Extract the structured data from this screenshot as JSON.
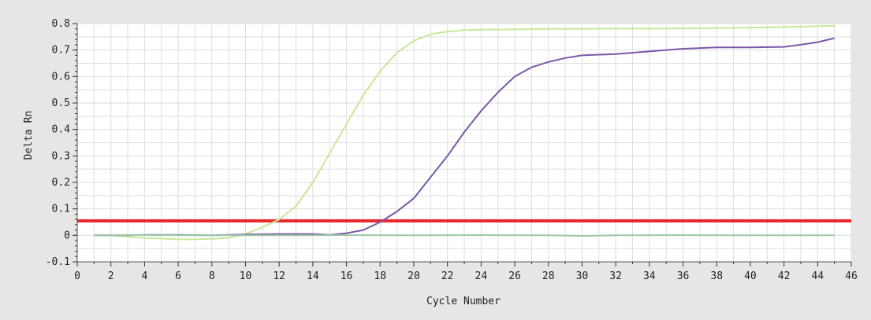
{
  "chart_data": {
    "type": "line",
    "xlabel": "Cycle Number",
    "ylabel": "Delta Rn",
    "xlim": [
      0,
      46
    ],
    "ylim": [
      -0.1,
      0.8
    ],
    "x_ticks": [
      0,
      2,
      4,
      6,
      8,
      10,
      12,
      14,
      16,
      18,
      20,
      22,
      24,
      26,
      28,
      30,
      32,
      34,
      36,
      38,
      40,
      42,
      44,
      46
    ],
    "y_ticks": [
      -0.1,
      0,
      0.1,
      0.2,
      0.3,
      0.4,
      0.5,
      0.6,
      0.7,
      0.8
    ],
    "x_tick_labels": [
      "0",
      "2",
      "4",
      "6",
      "8",
      "10",
      "12",
      "14",
      "16",
      "18",
      "20",
      "22",
      "24",
      "26",
      "28",
      "30",
      "32",
      "34",
      "36",
      "38",
      "40",
      "42",
      "44",
      "46"
    ],
    "y_tick_labels": [
      "-0.1",
      "0",
      "0.1",
      "0.2",
      "0.3",
      "0.4",
      "0.5",
      "0.6",
      "0.7",
      "0.8"
    ],
    "grid": true,
    "threshold": {
      "y": 0.055,
      "color": "#e8262a"
    },
    "series": [
      {
        "color": "#c8e89a",
        "x": [
          1,
          2,
          3,
          4,
          5,
          6,
          7,
          8,
          9,
          10,
          11,
          12,
          13,
          14,
          15,
          16,
          17,
          18,
          19,
          20,
          21,
          22,
          23,
          24,
          26,
          28,
          30,
          32,
          34,
          36,
          38,
          40,
          42,
          44,
          45
        ],
        "y": [
          0.0,
          0.0,
          -0.005,
          -0.01,
          -0.012,
          -0.015,
          -0.015,
          -0.013,
          -0.01,
          0.005,
          0.03,
          0.06,
          0.11,
          0.2,
          0.31,
          0.42,
          0.53,
          0.62,
          0.69,
          0.735,
          0.76,
          0.77,
          0.775,
          0.777,
          0.778,
          0.78,
          0.78,
          0.781,
          0.781,
          0.782,
          0.783,
          0.785,
          0.787,
          0.79,
          0.792
        ]
      },
      {
        "color": "#7a58a8",
        "x": [
          1,
          2,
          3,
          4,
          6,
          8,
          10,
          12,
          14,
          15,
          16,
          17,
          18,
          19,
          20,
          21,
          22,
          23,
          24,
          25,
          26,
          27,
          28,
          29,
          30,
          32,
          34,
          36,
          38,
          40,
          42,
          43,
          44,
          45
        ],
        "y": [
          0.0,
          0.0,
          0.0,
          0.002,
          0.002,
          0.0,
          0.003,
          0.005,
          0.005,
          0.002,
          0.008,
          0.02,
          0.05,
          0.09,
          0.14,
          0.22,
          0.3,
          0.39,
          0.47,
          0.54,
          0.6,
          0.635,
          0.655,
          0.67,
          0.68,
          0.685,
          0.695,
          0.705,
          0.71,
          0.71,
          0.712,
          0.72,
          0.73,
          0.745
        ]
      },
      {
        "color": "#9cc8a8",
        "x": [
          1,
          4,
          8,
          12,
          16,
          20,
          24,
          28,
          30,
          32,
          36,
          40,
          44,
          45
        ],
        "y": [
          0.0,
          0.001,
          0.0,
          0.0,
          0.001,
          0.0,
          0.001,
          0.0,
          -0.002,
          0.0,
          0.001,
          0.0,
          0.0,
          0.0
        ]
      }
    ]
  }
}
